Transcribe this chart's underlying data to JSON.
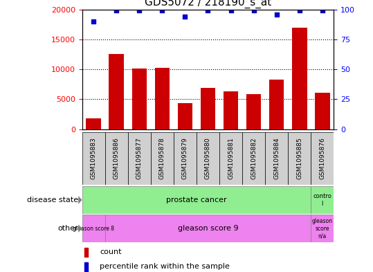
{
  "title": "GDS5072 / 218190_s_at",
  "samples": [
    "GSM1095883",
    "GSM1095886",
    "GSM1095877",
    "GSM1095878",
    "GSM1095879",
    "GSM1095880",
    "GSM1095881",
    "GSM1095882",
    "GSM1095884",
    "GSM1095885",
    "GSM1095876"
  ],
  "counts": [
    1800,
    12600,
    10100,
    10200,
    4300,
    6900,
    6300,
    5900,
    8300,
    17000,
    6100
  ],
  "percentiles": [
    90,
    99,
    99,
    99,
    94,
    99,
    99,
    99,
    96,
    99,
    99
  ],
  "ylim_left": [
    0,
    20000
  ],
  "ylim_right": [
    0,
    100
  ],
  "yticks_left": [
    0,
    5000,
    10000,
    15000,
    20000
  ],
  "yticks_right": [
    0,
    25,
    50,
    75,
    100
  ],
  "bar_color": "#cc0000",
  "dot_color": "#0000cc",
  "bg_color": "#ffffff",
  "plot_bg": "#ffffff",
  "disease_state_green": "#90ee90",
  "other_purple": "#ee82ee",
  "legend_count_label": "count",
  "legend_pct_label": "percentile rank within the sample",
  "ds_label": "disease state",
  "other_label": "other",
  "prostate_text": "prostate cancer",
  "control_text": "contro\nl",
  "gs8_text": "gleason score 8",
  "gs9_text": "gleason score 9",
  "gsna_text": "gleason\nscore\nn/a"
}
